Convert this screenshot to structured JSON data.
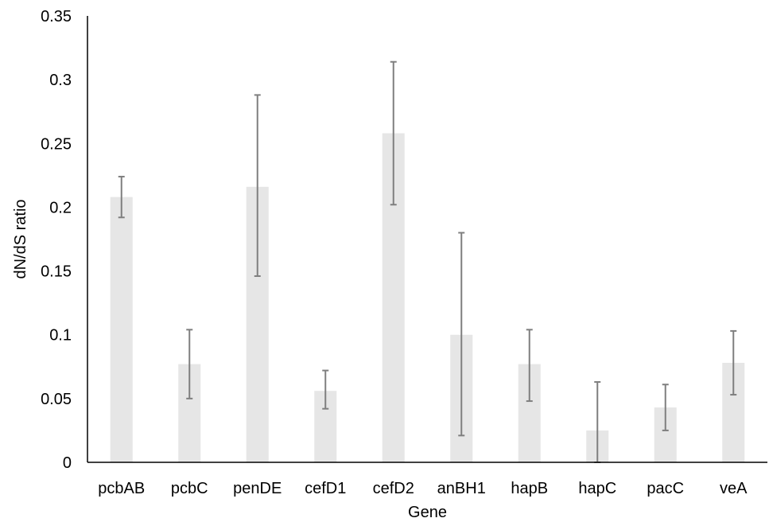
{
  "chart_data": {
    "type": "bar",
    "title": "",
    "xlabel": "Gene",
    "ylabel": "dN/dS ratio",
    "ylim": [
      0,
      0.35
    ],
    "yticks": [
      0,
      0.05,
      0.1,
      0.15,
      0.2,
      0.25,
      0.3,
      0.35
    ],
    "ytick_labels": [
      "0",
      "0.05",
      "0.1",
      "0.15",
      "0.2",
      "0.25",
      "0.3",
      "0.35"
    ],
    "grid": false,
    "legend": "none",
    "categories": [
      "pcbAB",
      "pcbC",
      "penDE",
      "cefD1",
      "cefD2",
      "anBH1",
      "hapB",
      "hapC",
      "pacC",
      "veA"
    ],
    "values": [
      0.208,
      0.077,
      0.216,
      0.056,
      0.258,
      0.1,
      0.077,
      0.025,
      0.043,
      0.078
    ],
    "error_low": [
      0.192,
      0.05,
      0.146,
      0.042,
      0.202,
      0.021,
      0.048,
      0.0,
      0.025,
      0.053
    ],
    "error_high": [
      0.224,
      0.104,
      0.288,
      0.072,
      0.314,
      0.18,
      0.104,
      0.063,
      0.061,
      0.103
    ],
    "colors": {
      "bar": "#e6e6e6",
      "error": "#7f7f7f",
      "axis": "#000000"
    }
  }
}
